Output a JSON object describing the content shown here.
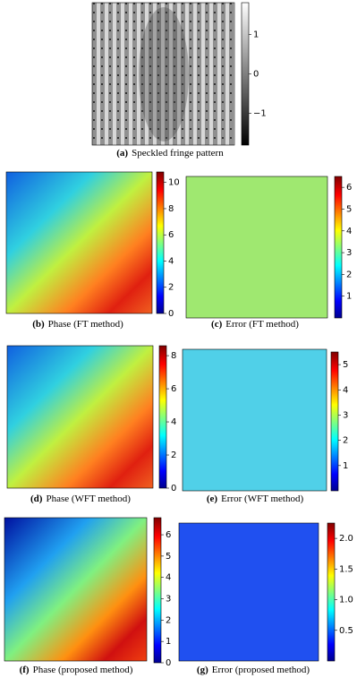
{
  "panels": [
    {
      "label": "(a)",
      "caption": "Speckled fringe pattern",
      "colorbar": {
        "colormap": "gray",
        "lim": [
          -1.8,
          1.8
        ],
        "ticks": [
          {
            "value": -1,
            "label": "−1"
          },
          0,
          1
        ]
      }
    },
    {
      "label": "(b)",
      "caption": "Phase (FT method)",
      "colorbar": {
        "colormap": "jet",
        "lim": [
          0,
          10.8
        ],
        "ticks": [
          0,
          2,
          4,
          6,
          8,
          10
        ]
      }
    },
    {
      "label": "(c)",
      "caption": "Error (FT method)",
      "colorbar": {
        "colormap": "jet",
        "lim": [
          0,
          6.5
        ],
        "ticks": [
          1,
          2,
          3,
          4,
          5,
          6
        ]
      }
    },
    {
      "label": "(d)",
      "caption": "Phase (WFT method)",
      "colorbar": {
        "colormap": "jet",
        "lim": [
          0,
          8.6
        ],
        "ticks": [
          0,
          2,
          4,
          6,
          8
        ]
      }
    },
    {
      "label": "(e)",
      "caption": "Error (WFT method)",
      "colorbar": {
        "colormap": "jet",
        "lim": [
          0,
          5.5
        ],
        "ticks": [
          1,
          2,
          3,
          4,
          5
        ]
      }
    },
    {
      "label": "(f)",
      "caption": "Phase (proposed method)",
      "colorbar": {
        "colormap": "jet",
        "lim": [
          0,
          6.8
        ],
        "ticks": [
          0,
          1,
          2,
          3,
          4,
          5,
          6
        ]
      }
    },
    {
      "label": "(g)",
      "caption": "Error (proposed method)",
      "colorbar": {
        "colormap": "jet",
        "lim": [
          0,
          2.25
        ],
        "ticks": [
          {
            "value": 0.5,
            "label": "0.5"
          },
          {
            "value": 1,
            "label": "1.0"
          },
          {
            "value": 1.5,
            "label": "1.5"
          },
          {
            "value": 2,
            "label": "2.0"
          }
        ]
      }
    }
  ]
}
